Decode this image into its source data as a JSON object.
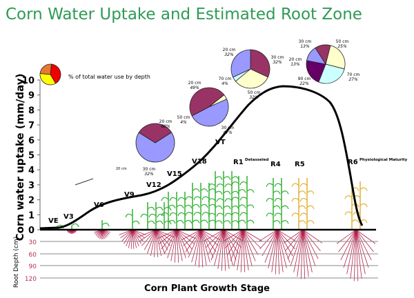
{
  "title": "Corn Water Uptake and Estimated Root Zone",
  "y_axis": {
    "label": "Corn water uptake (mm/day)",
    "ticks": [
      "0",
      "1",
      "2",
      "3",
      "4",
      "5",
      "6",
      "7",
      "8",
      "9",
      "10"
    ]
  },
  "root_axis": {
    "label": "Root Depth (cm)",
    "ticks": [
      "30",
      "60",
      "90",
      "120"
    ]
  },
  "x_axis": {
    "label": "Corn Plant Growth Stage"
  },
  "legend": {
    "text": "% of total water use by depth",
    "colors": [
      "#f00000",
      "#ffff00",
      "#e87a30"
    ]
  },
  "stages": [
    {
      "label": "VE",
      "sup": ""
    },
    {
      "label": "V3",
      "sup": ""
    },
    {
      "label": "V6",
      "sup": ""
    },
    {
      "label": "V9",
      "sup": ""
    },
    {
      "label": "V12",
      "sup": ""
    },
    {
      "label": "V15",
      "sup": ""
    },
    {
      "label": "V18",
      "sup": ""
    },
    {
      "label": "VT",
      "sup": ""
    },
    {
      "label": "R1",
      "sup": "Detasseled"
    },
    {
      "label": "R4",
      "sup": ""
    },
    {
      "label": "R5",
      "sup": ""
    },
    {
      "label": "R6",
      "sup": "Physiological Maturity"
    }
  ],
  "stray_label": "20 cm",
  "pies": [
    {
      "slices": [
        {
          "depth": "20 cm",
          "pct": "68%",
          "value": 68,
          "color": "#9999ff"
        },
        {
          "depth": "30 cm",
          "pct": "32%",
          "value": 32,
          "color": "#993366"
        }
      ]
    },
    {
      "slices": [
        {
          "depth": "20 cm",
          "pct": "49%",
          "value": 49,
          "color": "#9999ff"
        },
        {
          "depth": "30 cm",
          "pct": "47%",
          "value": 47,
          "color": "#993366"
        },
        {
          "depth": "50 cm",
          "pct": "4%",
          "value": 4,
          "color": "#ffffcc"
        }
      ]
    },
    {
      "slices": [
        {
          "depth": "30 cm",
          "pct": "32%",
          "value": 32,
          "color": "#993366"
        },
        {
          "depth": "50 cm",
          "pct": "32%",
          "value": 32,
          "color": "#ffffcc"
        },
        {
          "depth": "70 cm",
          "pct": "4%",
          "value": 4,
          "color": "#ccffff"
        },
        {
          "depth": "20 cm",
          "pct": "32%",
          "value": 32,
          "color": "#9999ff"
        }
      ]
    },
    {
      "slices": [
        {
          "depth": "50 cm",
          "pct": "25%",
          "value": 25,
          "color": "#ffffcc"
        },
        {
          "depth": "70 cm",
          "pct": "27%",
          "value": 27,
          "color": "#ccffff"
        },
        {
          "depth": "90 cm",
          "pct": "22%",
          "value": 22,
          "color": "#660066"
        },
        {
          "depth": "20 cm",
          "pct": "13%",
          "value": 13,
          "color": "#9999ff"
        },
        {
          "depth": "30 cm",
          "pct": "13%",
          "value": 13,
          "color": "#993366"
        }
      ]
    }
  ]
}
